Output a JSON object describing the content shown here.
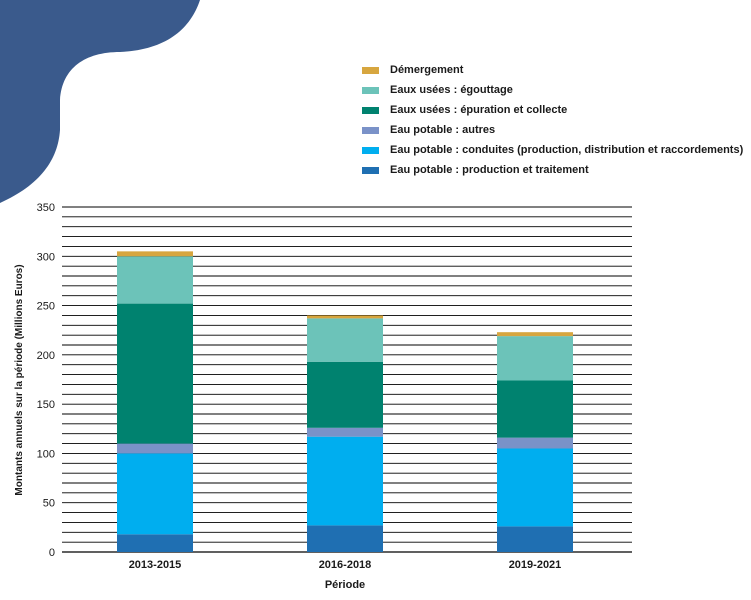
{
  "chart_data": {
    "type": "bar",
    "stacked": true,
    "categories": [
      "2013-2015",
      "2016-2018",
      "2019-2021"
    ],
    "xlabel": "Période",
    "ylabel": "Montants annuels sur la période (Millions Euros)",
    "ylim": [
      0,
      350
    ],
    "yticks": [
      0,
      50,
      100,
      150,
      200,
      250,
      300,
      350
    ],
    "grid": true,
    "legend_position": "top-right",
    "series": [
      {
        "name": "Eau potable : production et traitement",
        "color": "#1F6FB2",
        "values": [
          18,
          27,
          26
        ]
      },
      {
        "name": "Eau potable : conduites (production, distribution et raccordements)",
        "color": "#00AEEF",
        "values": [
          82,
          90,
          79
        ]
      },
      {
        "name": "Eau potable : autres",
        "color": "#7A92C8",
        "values": [
          10,
          9,
          11
        ]
      },
      {
        "name": "Eaux usées : épuration et collecte",
        "color": "#00826F",
        "values": [
          142,
          67,
          58
        ]
      },
      {
        "name": "Eaux usées : égouttage",
        "color": "#6CC3B9",
        "values": [
          48,
          44,
          45
        ]
      },
      {
        "name": "Démergement",
        "color": "#D7A63F",
        "values": [
          5,
          3,
          4
        ]
      }
    ]
  },
  "legend_order": [
    5,
    4,
    3,
    2,
    1,
    0
  ],
  "decor": {
    "shape_color": "#3A5A8C"
  }
}
